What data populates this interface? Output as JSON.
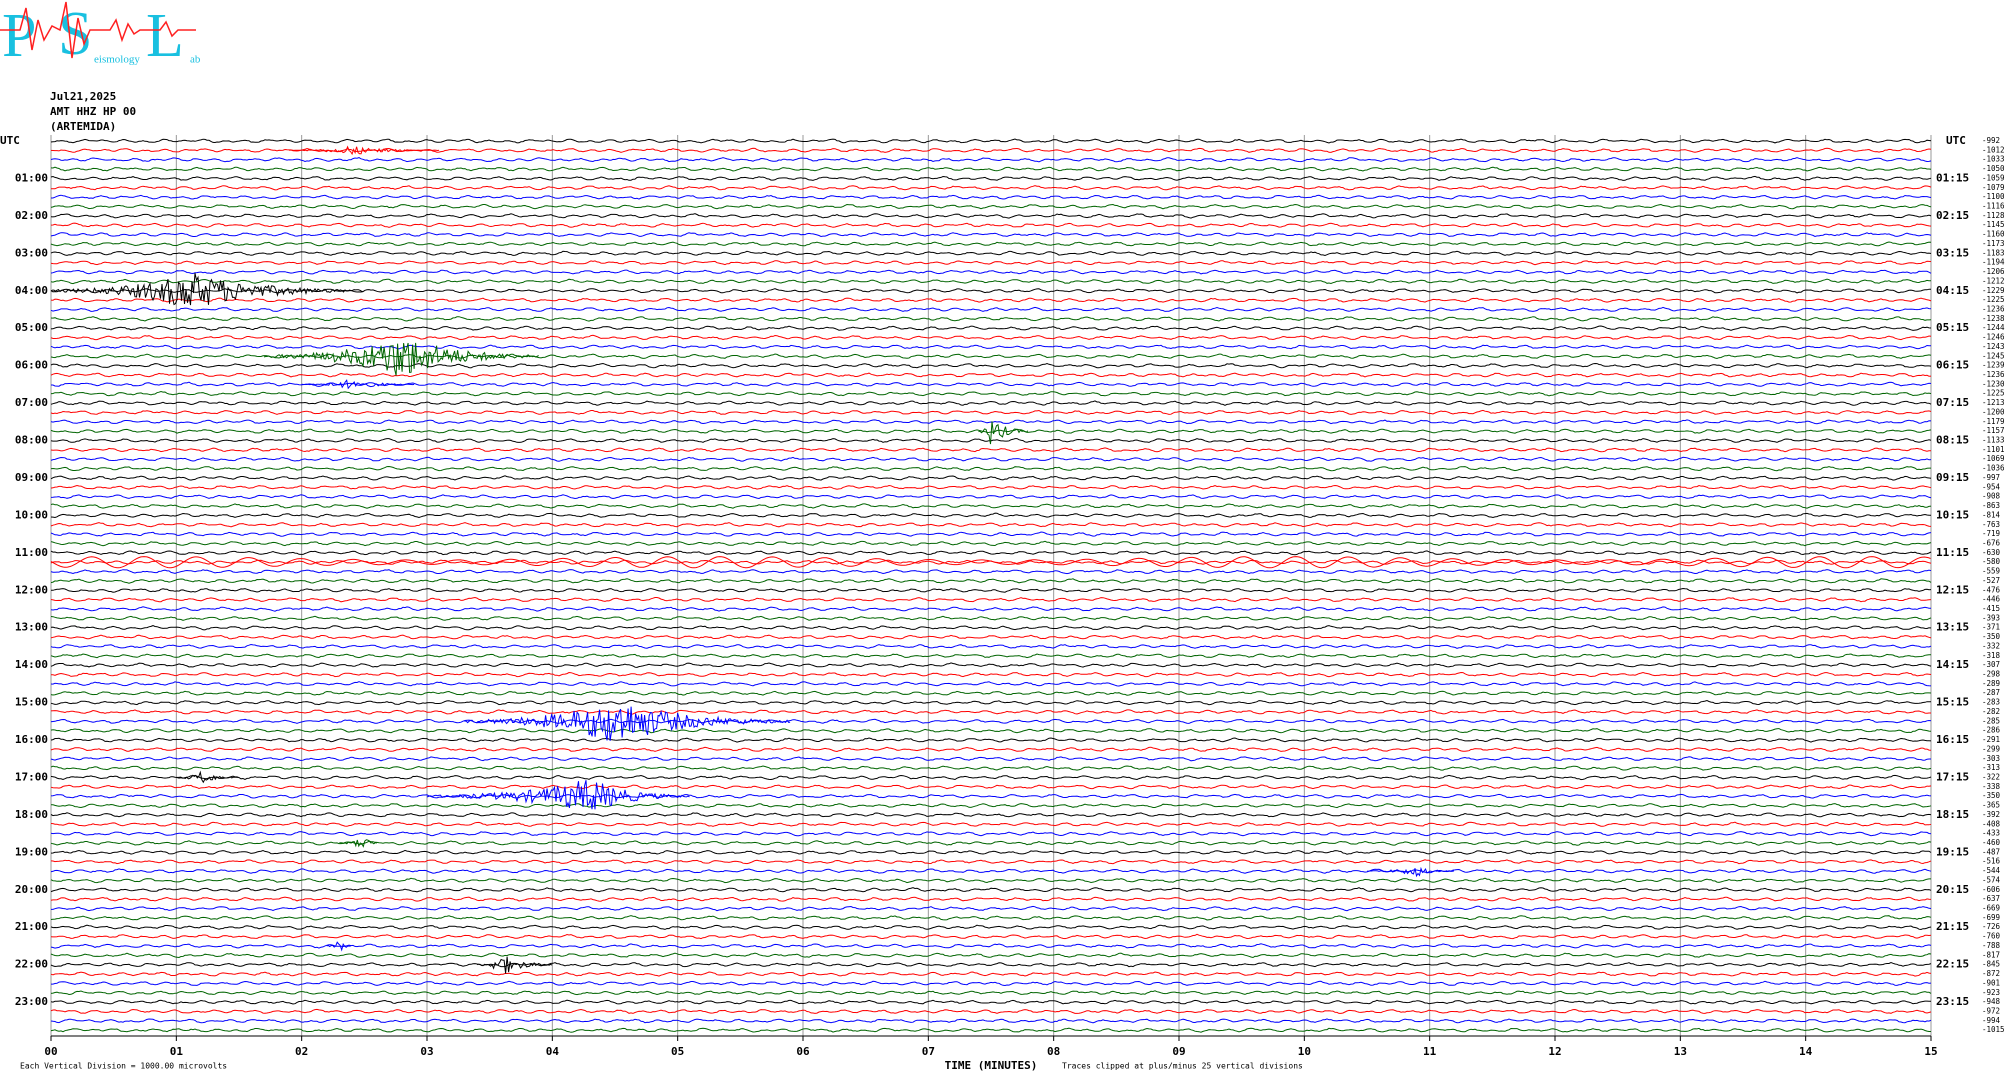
{
  "logo": {
    "letters": [
      "P",
      "S",
      "L"
    ],
    "words": [
      "eismology",
      "ab"
    ]
  },
  "chart_data": {
    "type": "helicorder",
    "header": [
      "Jul21,2025",
      "AMT HHZ HP 00",
      "(ARTEMIDA)"
    ],
    "left_header": "UTC",
    "right_header": "UTC",
    "left_labels": [
      "01:00",
      "02:00",
      "03:00",
      "04:00",
      "05:00",
      "06:00",
      "07:00",
      "08:00",
      "09:00",
      "10:00",
      "11:00",
      "12:00",
      "13:00",
      "14:00",
      "15:00",
      "16:00",
      "17:00",
      "18:00",
      "19:00",
      "20:00",
      "21:00",
      "22:00",
      "23:00"
    ],
    "right_labels": [
      "01:15",
      "02:15",
      "03:15",
      "04:15",
      "05:15",
      "06:15",
      "07:15",
      "08:15",
      "09:15",
      "10:15",
      "11:15",
      "12:15",
      "13:15",
      "14:15",
      "15:15",
      "16:15",
      "17:15",
      "18:15",
      "19:15",
      "20:15",
      "21:15",
      "22:15",
      "23:15"
    ],
    "line_offsets": [
      -992,
      -1012,
      -1033,
      -1050,
      -1059,
      -1079,
      -1100,
      -1116,
      -1128,
      -1145,
      -1160,
      -1173,
      -1183,
      -1194,
      -1206,
      -1212,
      -1229,
      -1225,
      -1236,
      -1238,
      -1244,
      -1246,
      -1243,
      -1245,
      -1239,
      -1236,
      -1230,
      -1225,
      -1213,
      -1200,
      -1179,
      -1157,
      -1133,
      -1101,
      -1069,
      -1036,
      -997,
      -954,
      -908,
      -863,
      -814,
      -763,
      -719,
      -676,
      -630,
      -580,
      -559,
      -527,
      -476,
      -446,
      -415,
      -393,
      -371,
      -350,
      -332,
      -318,
      -307,
      -298,
      -289,
      -287,
      -283,
      -282,
      -285,
      -286,
      -291,
      -299,
      -303,
      -313,
      -322,
      -338,
      -350,
      -365,
      -392,
      -408,
      -433,
      -460,
      -487,
      -516,
      -544,
      -574,
      -606,
      -637,
      -669,
      -699,
      -726,
      -760,
      -788,
      -817,
      -845,
      -872,
      -901,
      -923,
      -948,
      -972,
      -994,
      -1015
    ],
    "trace_colors": [
      "#000000",
      "#ff0000",
      "#0000ff",
      "#006400"
    ],
    "xlim": [
      0,
      15
    ],
    "xticks": [
      {
        "value": 0,
        "label": "00"
      },
      {
        "value": 1,
        "label": "01"
      },
      {
        "value": 2,
        "label": "02"
      },
      {
        "value": 3,
        "label": "03"
      },
      {
        "value": 4,
        "label": "04"
      },
      {
        "value": 5,
        "label": "05"
      },
      {
        "value": 6,
        "label": "06"
      },
      {
        "value": 7,
        "label": "07"
      },
      {
        "value": 8,
        "label": "08"
      },
      {
        "value": 9,
        "label": "09"
      },
      {
        "value": 10,
        "label": "10"
      },
      {
        "value": 11,
        "label": "11"
      },
      {
        "value": 12,
        "label": "12"
      },
      {
        "value": 13,
        "label": "13"
      },
      {
        "value": 14,
        "label": "14"
      },
      {
        "value": 15,
        "label": "15"
      }
    ],
    "grid": true,
    "xlabel": "TIME (MINUTES)",
    "clip_note": "Traces clipped at plus/minus 25 vertical divisions",
    "scale_note": "Each Vertical Division = 1000.00 microvolts",
    "events": [
      {
        "line": 1,
        "start": 1.9,
        "peak": 2.4,
        "end": 3.1,
        "amplitude": 0.5
      },
      {
        "line": 16,
        "start": 0,
        "peak": 1.1,
        "end": 2.5,
        "amplitude": 2.2
      },
      {
        "line": 23,
        "start": 1.7,
        "peak": 2.8,
        "end": 3.9,
        "amplitude": 2.5
      },
      {
        "line": 26,
        "start": 2.0,
        "peak": 2.4,
        "end": 2.9,
        "amplitude": 0.6
      },
      {
        "line": 31,
        "start": 7.4,
        "peak": 7.5,
        "end": 7.8,
        "amplitude": 1.6
      },
      {
        "line": 45,
        "start": 0,
        "peak": 7.5,
        "end": 15,
        "amplitude": 0.6
      },
      {
        "line": 62,
        "start": 3.3,
        "peak": 4.5,
        "end": 5.9,
        "amplitude": 2.6
      },
      {
        "line": 68,
        "start": 1.0,
        "peak": 1.2,
        "end": 1.5,
        "amplitude": 0.7
      },
      {
        "line": 70,
        "start": 3.0,
        "peak": 4.3,
        "end": 5.1,
        "amplitude": 2.0
      },
      {
        "line": 75,
        "start": 2.3,
        "peak": 2.5,
        "end": 2.6,
        "amplitude": 0.8
      },
      {
        "line": 78,
        "start": 10.5,
        "peak": 10.9,
        "end": 11.2,
        "amplitude": 0.6
      },
      {
        "line": 86,
        "start": 2.2,
        "peak": 2.3,
        "end": 2.4,
        "amplitude": 0.8
      },
      {
        "line": 88,
        "start": 3.4,
        "peak": 3.6,
        "end": 4.0,
        "amplitude": 1.2
      }
    ]
  }
}
